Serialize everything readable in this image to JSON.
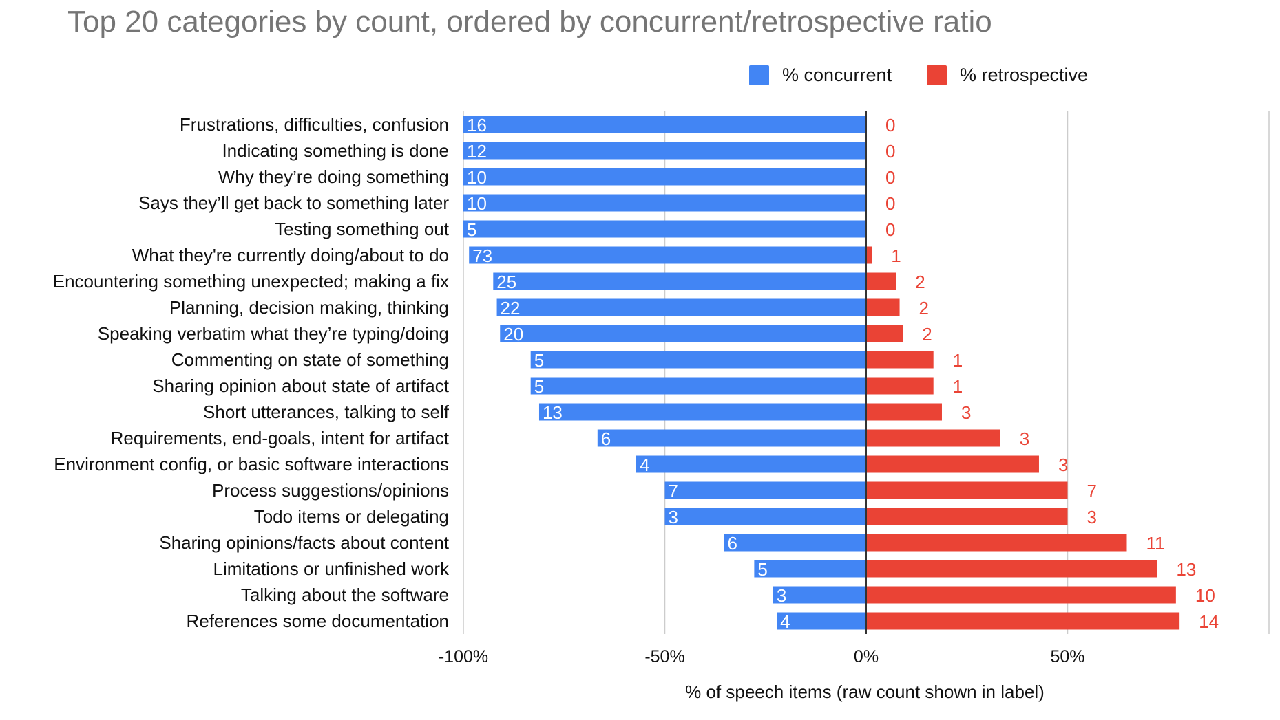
{
  "chart_data": {
    "type": "bar",
    "orientation": "horizontal-diverging",
    "title": "Top 20 categories by count, ordered by concurrent/retrospective ratio",
    "xlabel": "% of speech items (raw count shown in label)",
    "ylabel": "",
    "xlim": [
      -100,
      100
    ],
    "x_ticks": [
      {
        "value": -100,
        "label": "-100%"
      },
      {
        "value": -50,
        "label": "-50%"
      },
      {
        "value": 0,
        "label": "0%"
      },
      {
        "value": 50,
        "label": "50%"
      }
    ],
    "grid": true,
    "legend_position": "top-right",
    "categories": [
      "Frustrations, difficulties, confusion",
      "Indicating something is done",
      "Why they’re doing something",
      "Says they’ll get back to something later",
      "Testing something out",
      "What they're currently doing/about to do",
      "Encountering something unexpected; making a fix",
      "Planning, decision making, thinking",
      "Speaking verbatim what they’re typing/doing",
      "Commenting on state of something",
      "Sharing opinion about state of artifact",
      "Short utterances, talking to self",
      "Requirements, end-goals, intent for artifact",
      "Environment config, or basic software interactions",
      "Process suggestions/opinions",
      "Todo items or delegating",
      "Sharing opinions/facts about content",
      "Limitations or unfinished work",
      "Talking about the software",
      "References some documentation"
    ],
    "series": [
      {
        "name": "% concurrent",
        "color": "#4285f4",
        "values": [
          -100,
          -100,
          -100,
          -100,
          -100,
          -98.6,
          -92.6,
          -91.7,
          -90.9,
          -83.3,
          -83.3,
          -81.2,
          -66.7,
          -57.1,
          -50,
          -50,
          -35.3,
          -27.8,
          -23.1,
          -22.2
        ],
        "labels": [
          "16",
          "12",
          "10",
          "10",
          "5",
          "73",
          "25",
          "22",
          "20",
          "5",
          "5",
          "13",
          "6",
          "4",
          "7",
          "3",
          "6",
          "5",
          "3",
          "4"
        ]
      },
      {
        "name": "% retrospective",
        "color": "#ea4335",
        "values": [
          0,
          0,
          0,
          0,
          0,
          1.4,
          7.4,
          8.3,
          9.1,
          16.7,
          16.7,
          18.8,
          33.3,
          42.9,
          50,
          50,
          64.7,
          72.2,
          76.9,
          77.8
        ],
        "labels": [
          "0",
          "0",
          "0",
          "0",
          "0",
          "1",
          "2",
          "2",
          "2",
          "1",
          "1",
          "3",
          "3",
          "3",
          "7",
          "3",
          "11",
          "13",
          "10",
          "14"
        ]
      }
    ]
  }
}
